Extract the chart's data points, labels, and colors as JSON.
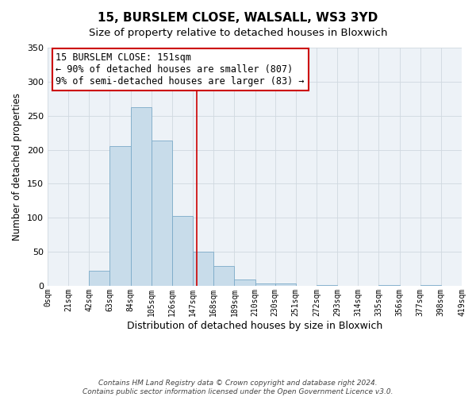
{
  "title": "15, BURSLEM CLOSE, WALSALL, WS3 3YD",
  "subtitle": "Size of property relative to detached houses in Bloxwich",
  "xlabel": "Distribution of detached houses by size in Bloxwich",
  "ylabel": "Number of detached properties",
  "bar_color": "#c8dcea",
  "bar_edge_color": "#7baac8",
  "grid_color": "#d0d8e0",
  "bg_color": "#edf2f7",
  "vline_x": 151,
  "vline_color": "#cc0000",
  "bin_edges": [
    0,
    21,
    42,
    63,
    84,
    105,
    126,
    147,
    168,
    189,
    210,
    230,
    251,
    272,
    293,
    314,
    335,
    356,
    377,
    398,
    419
  ],
  "bin_heights": [
    0,
    0,
    22,
    205,
    263,
    213,
    103,
    50,
    29,
    9,
    3,
    4,
    0,
    1,
    0,
    0,
    1,
    0,
    1,
    0
  ],
  "tick_labels": [
    "0sqm",
    "21sqm",
    "42sqm",
    "63sqm",
    "84sqm",
    "105sqm",
    "126sqm",
    "147sqm",
    "168sqm",
    "189sqm",
    "210sqm",
    "230sqm",
    "251sqm",
    "272sqm",
    "293sqm",
    "314sqm",
    "335sqm",
    "356sqm",
    "377sqm",
    "398sqm",
    "419sqm"
  ],
  "annotation_title": "15 BURSLEM CLOSE: 151sqm",
  "annotation_line1": "← 90% of detached houses are smaller (807)",
  "annotation_line2": "9% of semi-detached houses are larger (83) →",
  "annotation_box_color": "#ffffff",
  "annotation_box_edge": "#cc0000",
  "footnote1": "Contains HM Land Registry data © Crown copyright and database right 2024.",
  "footnote2": "Contains public sector information licensed under the Open Government Licence v3.0.",
  "ylim": [
    0,
    350
  ],
  "xlim": [
    0,
    419
  ],
  "title_fontsize": 11,
  "subtitle_fontsize": 9.5,
  "xlabel_fontsize": 9,
  "ylabel_fontsize": 8.5,
  "tick_fontsize": 7,
  "annotation_fontsize": 8.5,
  "footnote_fontsize": 6.5
}
